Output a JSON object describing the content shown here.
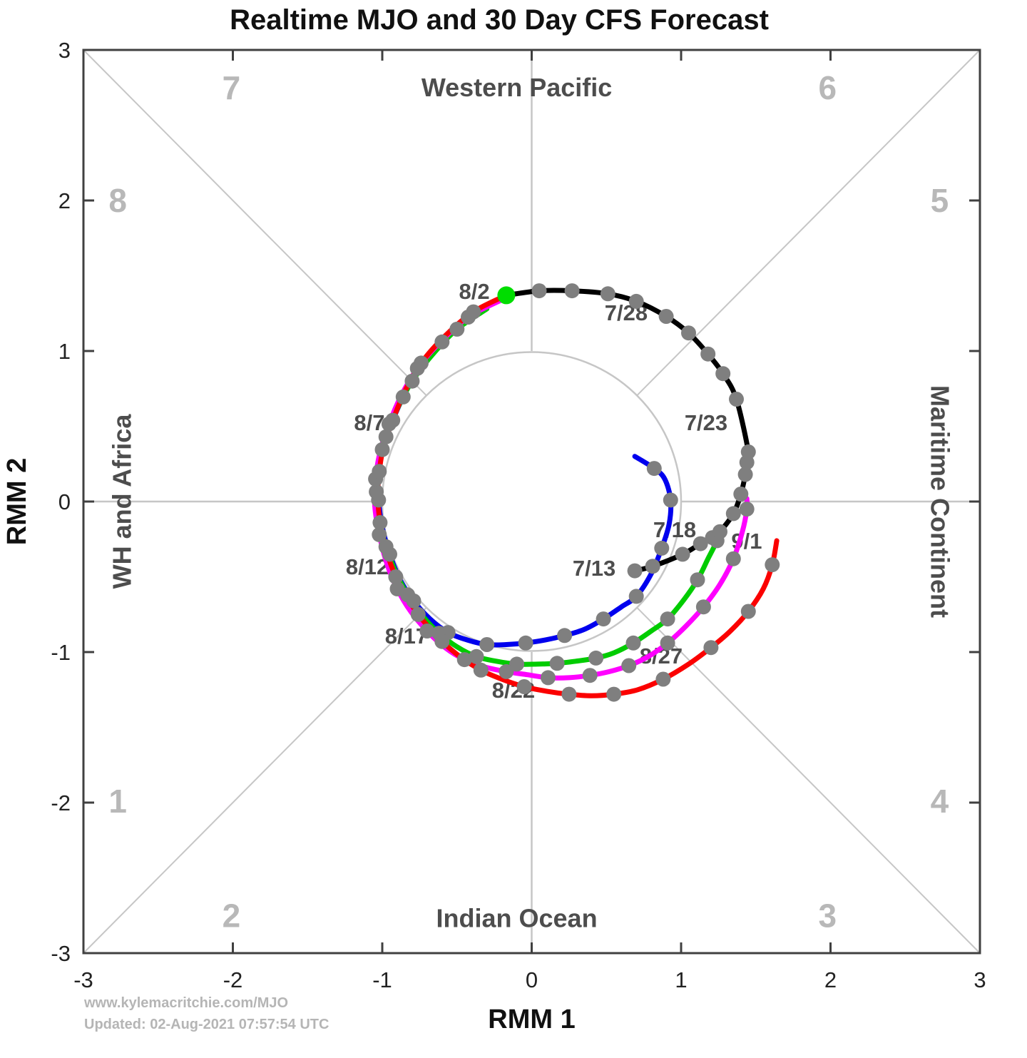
{
  "title": "Realtime MJO and 30 Day CFS Forecast",
  "footer": {
    "line1": "www.kylemacritchie.com/MJO",
    "line2": "Updated: 02-Aug-2021 07:57:54 UTC"
  },
  "chart_data": {
    "type": "line",
    "subtype": "mjo-rmm-phase-space",
    "title": "Realtime MJO and 30 Day CFS Forecast",
    "xlabel": "RMM 1",
    "ylabel": "RMM 2",
    "xlim": [
      -3,
      3
    ],
    "ylim": [
      -3,
      3
    ],
    "ticks": [
      -3,
      -2,
      -1,
      0,
      1,
      2,
      3
    ],
    "unit_circle_radius": 1,
    "grid": false,
    "legend_position": "none",
    "colors": {
      "axis": "#404040",
      "grid_lines": "#c6c6c6",
      "tick_label": "#222222",
      "phase_number": "#b8b8b8",
      "region_label": "#4d4d4d",
      "date_label": "#4d4d4d",
      "marker": "#7f7f7f",
      "latest_obs": "#00dd00"
    },
    "region_labels": [
      {
        "text": "Western Pacific",
        "x": -0.1,
        "y": 2.75,
        "rotate": 0
      },
      {
        "text": "Maritime Continent",
        "x": 2.73,
        "y": 0,
        "rotate": 90
      },
      {
        "text": "Indian Ocean",
        "x": -0.1,
        "y": -2.77,
        "rotate": 0
      },
      {
        "text": "WH and Africa",
        "x": -2.74,
        "y": 0,
        "rotate": -90
      }
    ],
    "phase_labels": [
      {
        "text": "1",
        "x": -2.77,
        "y": -1.99
      },
      {
        "text": "2",
        "x": -2.01,
        "y": -2.75
      },
      {
        "text": "3",
        "x": 1.98,
        "y": -2.75
      },
      {
        "text": "4",
        "x": 2.73,
        "y": -1.99
      },
      {
        "text": "5",
        "x": 2.73,
        "y": 2.0
      },
      {
        "text": "6",
        "x": 1.98,
        "y": 2.75
      },
      {
        "text": "7",
        "x": -2.01,
        "y": 2.75
      },
      {
        "text": "8",
        "x": -2.77,
        "y": 2.0
      }
    ],
    "date_annotations": [
      {
        "text": "7/13",
        "x": 0.418,
        "y": -0.441
      },
      {
        "text": "7/18",
        "x": 0.957,
        "y": -0.185
      },
      {
        "text": "7/23",
        "x": 1.167,
        "y": 0.526
      },
      {
        "text": "7/28",
        "x": 0.632,
        "y": 1.256
      },
      {
        "text": "8/2",
        "x": -0.384,
        "y": 1.398
      },
      {
        "text": "8/7",
        "x": -1.086,
        "y": 0.526
      },
      {
        "text": "8/12",
        "x": -1.1,
        "y": -0.431
      },
      {
        "text": "8/17",
        "x": -0.838,
        "y": -0.891
      },
      {
        "text": "8/22",
        "x": -0.122,
        "y": -1.251
      },
      {
        "text": "8/27",
        "x": 0.866,
        "y": -1.024
      },
      {
        "text": "9/1",
        "x": 1.439,
        "y": -0.261
      }
    ],
    "series": [
      {
        "name": "forecast-blue",
        "color": "#0000ee",
        "width": 7,
        "marker_every": 2,
        "points": [
          [
            -0.42,
            1.22
          ],
          [
            -0.6,
            1.06
          ],
          [
            -0.755,
            0.88
          ],
          [
            -0.86,
            0.695
          ],
          [
            -0.94,
            0.515
          ],
          [
            -1.0,
            0.345
          ],
          [
            -1.03,
            0.175
          ],
          [
            -1.025,
            0.01
          ],
          [
            -1.0,
            -0.17
          ],
          [
            -0.95,
            -0.35
          ],
          [
            -0.88,
            -0.52
          ],
          [
            -0.79,
            -0.66
          ],
          [
            -0.68,
            -0.78
          ],
          [
            -0.56,
            -0.87
          ],
          [
            -0.43,
            -0.92
          ],
          [
            -0.3,
            -0.95
          ],
          [
            -0.17,
            -0.95
          ],
          [
            -0.04,
            -0.94
          ],
          [
            0.09,
            -0.92
          ],
          [
            0.22,
            -0.89
          ],
          [
            0.35,
            -0.85
          ],
          [
            0.48,
            -0.78
          ],
          [
            0.6,
            -0.7
          ],
          [
            0.7,
            -0.63
          ],
          [
            0.8,
            -0.48
          ],
          [
            0.87,
            -0.31
          ],
          [
            0.92,
            -0.15
          ],
          [
            0.93,
            0.01
          ],
          [
            0.89,
            0.15
          ],
          [
            0.82,
            0.22
          ],
          [
            0.69,
            0.3
          ]
        ]
      },
      {
        "name": "forecast-green",
        "color": "#00cc00",
        "width": 7,
        "marker_every": 2,
        "points": [
          [
            -0.3,
            1.28
          ],
          [
            -0.5,
            1.145
          ],
          [
            -0.66,
            0.98
          ],
          [
            -0.8,
            0.8
          ],
          [
            -0.9,
            0.615
          ],
          [
            -0.975,
            0.43
          ],
          [
            -1.02,
            0.25
          ],
          [
            -1.04,
            0.065
          ],
          [
            -1.025,
            -0.12
          ],
          [
            -0.975,
            -0.3
          ],
          [
            -0.91,
            -0.47
          ],
          [
            -0.83,
            -0.62
          ],
          [
            -0.73,
            -0.76
          ],
          [
            -0.62,
            -0.875
          ],
          [
            -0.5,
            -0.965
          ],
          [
            -0.37,
            -1.03
          ],
          [
            -0.24,
            -1.06
          ],
          [
            -0.1,
            -1.08
          ],
          [
            0.04,
            -1.08
          ],
          [
            0.17,
            -1.075
          ],
          [
            0.3,
            -1.06
          ],
          [
            0.43,
            -1.04
          ],
          [
            0.55,
            -1.005
          ],
          [
            0.68,
            -0.94
          ],
          [
            0.8,
            -0.86
          ],
          [
            0.91,
            -0.78
          ],
          [
            1.02,
            -0.65
          ],
          [
            1.11,
            -0.52
          ],
          [
            1.18,
            -0.38
          ],
          [
            1.24,
            -0.26
          ],
          [
            1.27,
            -0.17
          ]
        ]
      },
      {
        "name": "forecast-magenta",
        "color": "#ff00ff",
        "width": 7,
        "marker_every": 2,
        "points": [
          [
            -0.2,
            1.34
          ],
          [
            -0.425,
            1.225
          ],
          [
            -0.61,
            1.06
          ],
          [
            -0.765,
            0.885
          ],
          [
            -0.875,
            0.7
          ],
          [
            -0.955,
            0.515
          ],
          [
            -1.015,
            0.33
          ],
          [
            -1.045,
            0.15
          ],
          [
            -1.05,
            -0.03
          ],
          [
            -1.02,
            -0.22
          ],
          [
            -0.97,
            -0.41
          ],
          [
            -0.9,
            -0.58
          ],
          [
            -0.81,
            -0.73
          ],
          [
            -0.7,
            -0.86
          ],
          [
            -0.58,
            -0.97
          ],
          [
            -0.45,
            -1.05
          ],
          [
            -0.31,
            -1.1
          ],
          [
            -0.17,
            -1.13
          ],
          [
            -0.03,
            -1.15
          ],
          [
            0.11,
            -1.17
          ],
          [
            0.25,
            -1.17
          ],
          [
            0.39,
            -1.155
          ],
          [
            0.52,
            -1.13
          ],
          [
            0.65,
            -1.09
          ],
          [
            0.78,
            -1.03
          ],
          [
            0.91,
            -0.94
          ],
          [
            1.03,
            -0.83
          ],
          [
            1.15,
            -0.7
          ],
          [
            1.26,
            -0.55
          ],
          [
            1.35,
            -0.38
          ],
          [
            1.41,
            -0.2
          ],
          [
            1.44,
            -0.05
          ],
          [
            1.44,
            0.02
          ]
        ]
      },
      {
        "name": "forecast-red",
        "color": "#fb0000",
        "width": 7,
        "marker_every": 2,
        "points": [
          [
            -0.17,
            1.37
          ],
          [
            -0.39,
            1.26
          ],
          [
            -0.58,
            1.1
          ],
          [
            -0.74,
            0.92
          ],
          [
            -0.85,
            0.73
          ],
          [
            -0.93,
            0.54
          ],
          [
            -0.99,
            0.37
          ],
          [
            -1.02,
            0.2
          ],
          [
            -1.03,
            0.04
          ],
          [
            -1.015,
            -0.14
          ],
          [
            -0.975,
            -0.32
          ],
          [
            -0.91,
            -0.5
          ],
          [
            -0.84,
            -0.63
          ],
          [
            -0.76,
            -0.75
          ],
          [
            -0.675,
            -0.85
          ],
          [
            -0.6,
            -0.93
          ],
          [
            -0.48,
            -1.03
          ],
          [
            -0.34,
            -1.12
          ],
          [
            -0.2,
            -1.18
          ],
          [
            -0.05,
            -1.23
          ],
          [
            0.1,
            -1.26
          ],
          [
            0.25,
            -1.28
          ],
          [
            0.4,
            -1.29
          ],
          [
            0.55,
            -1.28
          ],
          [
            0.71,
            -1.25
          ],
          [
            0.88,
            -1.18
          ],
          [
            1.05,
            -1.08
          ],
          [
            1.2,
            -0.97
          ],
          [
            1.33,
            -0.86
          ],
          [
            1.45,
            -0.73
          ],
          [
            1.55,
            -0.58
          ],
          [
            1.61,
            -0.42
          ],
          [
            1.64,
            -0.26
          ]
        ]
      },
      {
        "name": "observed",
        "color": "#000000",
        "width": 7,
        "marker_every": 1,
        "skip_last_marker": true,
        "points": [
          [
            0.69,
            -0.46
          ],
          [
            0.81,
            -0.43
          ],
          [
            1.01,
            -0.35
          ],
          [
            1.13,
            -0.28
          ],
          [
            1.21,
            -0.24
          ],
          [
            1.26,
            -0.2
          ],
          [
            1.35,
            -0.08
          ],
          [
            1.4,
            0.05
          ],
          [
            1.43,
            0.18
          ],
          [
            1.44,
            0.26
          ],
          [
            1.45,
            0.33
          ],
          [
            1.37,
            0.68
          ],
          [
            1.28,
            0.85
          ],
          [
            1.18,
            0.98
          ],
          [
            1.05,
            1.12
          ],
          [
            0.9,
            1.23
          ],
          [
            0.7,
            1.33
          ],
          [
            0.51,
            1.38
          ],
          [
            0.27,
            1.4
          ],
          [
            0.05,
            1.4
          ],
          [
            -0.17,
            1.37
          ]
        ]
      }
    ],
    "latest_obs_marker": {
      "x": -0.17,
      "y": 1.37
    }
  }
}
